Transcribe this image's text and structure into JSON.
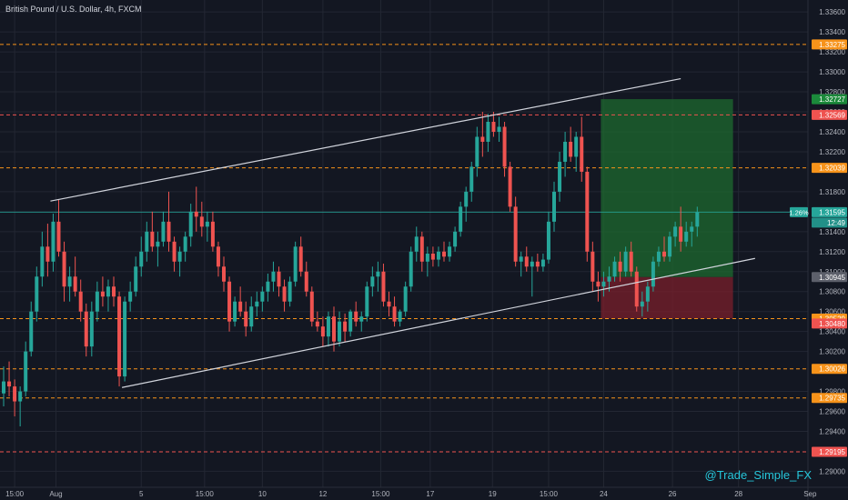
{
  "header": {
    "title": "British Pound / U.S. Dollar, 4h, FXCM"
  },
  "watermark": "@Trade_Simple_FX",
  "colors": {
    "background": "#131722",
    "grid": "#232733",
    "up": "#26a69a",
    "down": "#ef5350",
    "orange_line": "#f7931a",
    "red_line": "#ef5350",
    "trendline": "#d1d4dc",
    "axis_text": "#b2b5be",
    "target_zone": "#1e6a2f",
    "stop_zone": "#7a1f2b"
  },
  "chart_data": {
    "type": "candlestick",
    "interval": "4h",
    "y_axis": {
      "side": "right",
      "range": [
        1.2884,
        1.3372
      ],
      "ticks": [
        "1.33600",
        "1.33400",
        "1.33200",
        "1.33000",
        "1.32800",
        "1.32600",
        "1.32400",
        "1.32200",
        "1.31800",
        "1.31600",
        "1.31400",
        "1.31200",
        "1.31000",
        "1.30800",
        "1.30600",
        "1.30400",
        "1.30200",
        "1.29800",
        "1.29600",
        "1.29400",
        "1.29000"
      ]
    },
    "x_axis": {
      "ticks": [
        {
          "label": "15:00",
          "x": 2.0
        },
        {
          "label": "Aug",
          "x": 9.5
        },
        {
          "label": "5",
          "x": 25.0
        },
        {
          "label": "15:00",
          "x": 36.5
        },
        {
          "label": "10",
          "x": 47.0
        },
        {
          "label": "12",
          "x": 58.0
        },
        {
          "label": "15:00",
          "x": 68.5
        },
        {
          "label": "17",
          "x": 77.5
        },
        {
          "label": "19",
          "x": 88.8
        },
        {
          "label": "15:00",
          "x": 99.0
        },
        {
          "label": "24",
          "x": 109.0
        },
        {
          "label": "26",
          "x": 121.5
        },
        {
          "label": "28",
          "x": 133.5
        },
        {
          "label": "Sep",
          "x": 146.5
        }
      ]
    },
    "horizontal_levels": [
      {
        "value": 1.33275,
        "label": "1.33275",
        "style": "dashed",
        "color": "orange"
      },
      {
        "value": 1.32569,
        "label": "1.32569",
        "style": "dashed",
        "color": "red"
      },
      {
        "value": 1.32039,
        "label": "1.32039",
        "style": "dashed",
        "color": "orange"
      },
      {
        "value": 1.31595,
        "label": "1.31595",
        "style": "solid",
        "color": "teal",
        "current": true
      },
      {
        "value": 1.30529,
        "label": "1.30529",
        "style": "dashed",
        "color": "orange"
      },
      {
        "value": 1.30026,
        "label": "1.30026",
        "style": "dashed",
        "color": "orange"
      },
      {
        "value": 1.29735,
        "label": "1.29735",
        "style": "dashed",
        "color": "orange"
      },
      {
        "value": 1.29195,
        "label": "1.29195",
        "style": "dashed",
        "color": "red"
      }
    ],
    "price_tags": [
      {
        "value": 1.32727,
        "label": "1.32727",
        "color": "green"
      },
      {
        "value": 1.30945,
        "label": "1.30945",
        "color": "grey"
      },
      {
        "value": 1.3048,
        "label": "1.30480",
        "color": "red"
      }
    ],
    "current_price_badge": {
      "change": "1.26%",
      "price": "1.31595",
      "countdown": "12:49"
    },
    "trendlines": [
      {
        "from": {
          "x": 8.5,
          "y": 1.31706
        },
        "to": {
          "x": 123.0,
          "y": 1.32932
        }
      },
      {
        "from": {
          "x": 21.5,
          "y": 1.29839
        },
        "to": {
          "x": 136.5,
          "y": 1.31132
        }
      }
    ],
    "position": {
      "x_start": 108.5,
      "x_end": 132.5,
      "entry": 1.30945,
      "target": 1.32727,
      "stop": 1.30529
    },
    "candles": [
      [
        1.2978,
        1.3005,
        1.2965,
        1.299
      ],
      [
        1.299,
        1.301,
        1.2975,
        1.2985
      ],
      [
        1.2985,
        1.2992,
        1.2955,
        1.297
      ],
      [
        1.297,
        1.2985,
        1.2945,
        1.298
      ],
      [
        1.298,
        1.303,
        1.2975,
        1.302
      ],
      [
        1.302,
        1.307,
        1.3015,
        1.306
      ],
      [
        1.306,
        1.3105,
        1.305,
        1.3095
      ],
      [
        1.3095,
        1.314,
        1.3085,
        1.3125
      ],
      [
        1.3125,
        1.3148,
        1.3095,
        1.311
      ],
      [
        1.311,
        1.3158,
        1.31,
        1.315
      ],
      [
        1.315,
        1.3172,
        1.3115,
        1.312
      ],
      [
        1.312,
        1.313,
        1.307,
        1.3085
      ],
      [
        1.3085,
        1.3105,
        1.307,
        1.3095
      ],
      [
        1.3095,
        1.3115,
        1.3075,
        1.308
      ],
      [
        1.308,
        1.3092,
        1.305,
        1.306
      ],
      [
        1.306,
        1.3068,
        1.3015,
        1.3025
      ],
      [
        1.3025,
        1.307,
        1.3015,
        1.306
      ],
      [
        1.306,
        1.309,
        1.305,
        1.308
      ],
      [
        1.308,
        1.3095,
        1.3065,
        1.3075
      ],
      [
        1.3075,
        1.3092,
        1.306,
        1.3085
      ],
      [
        1.3085,
        1.3095,
        1.3065,
        1.3075
      ],
      [
        1.3075,
        1.308,
        1.2985,
        1.2995
      ],
      [
        1.2995,
        1.3075,
        1.299,
        1.307
      ],
      [
        1.307,
        1.309,
        1.306,
        1.308
      ],
      [
        1.308,
        1.3115,
        1.3075,
        1.3105
      ],
      [
        1.3105,
        1.3135,
        1.3095,
        1.312
      ],
      [
        1.312,
        1.315,
        1.311,
        1.314
      ],
      [
        1.314,
        1.316,
        1.312,
        1.3125
      ],
      [
        1.3125,
        1.314,
        1.3105,
        1.313
      ],
      [
        1.313,
        1.316,
        1.3125,
        1.315
      ],
      [
        1.315,
        1.318,
        1.312,
        1.313
      ],
      [
        1.313,
        1.3135,
        1.31,
        1.311
      ],
      [
        1.311,
        1.3125,
        1.3095,
        1.312
      ],
      [
        1.312,
        1.314,
        1.311,
        1.3135
      ],
      [
        1.3135,
        1.3168,
        1.3125,
        1.316
      ],
      [
        1.316,
        1.3185,
        1.314,
        1.3155
      ],
      [
        1.3155,
        1.317,
        1.3135,
        1.3145
      ],
      [
        1.3145,
        1.316,
        1.313,
        1.315
      ],
      [
        1.315,
        1.316,
        1.312,
        1.3125
      ],
      [
        1.3125,
        1.313,
        1.3095,
        1.3105
      ],
      [
        1.3105,
        1.3115,
        1.308,
        1.309
      ],
      [
        1.309,
        1.3095,
        1.304,
        1.305
      ],
      [
        1.305,
        1.3075,
        1.3045,
        1.307
      ],
      [
        1.307,
        1.3085,
        1.3055,
        1.306
      ],
      [
        1.306,
        1.307,
        1.3035,
        1.3045
      ],
      [
        1.3045,
        1.3075,
        1.304,
        1.3065
      ],
      [
        1.3065,
        1.308,
        1.3055,
        1.307
      ],
      [
        1.307,
        1.3085,
        1.306,
        1.308
      ],
      [
        1.308,
        1.3098,
        1.307,
        1.309
      ],
      [
        1.309,
        1.311,
        1.308,
        1.31
      ],
      [
        1.31,
        1.3105,
        1.3075,
        1.3085
      ],
      [
        1.3085,
        1.3092,
        1.306,
        1.307
      ],
      [
        1.307,
        1.3095,
        1.3065,
        1.309
      ],
      [
        1.309,
        1.313,
        1.3085,
        1.3125
      ],
      [
        1.3125,
        1.3135,
        1.3095,
        1.31
      ],
      [
        1.31,
        1.311,
        1.3075,
        1.308
      ],
      [
        1.308,
        1.3085,
        1.3045,
        1.305
      ],
      [
        1.305,
        1.306,
        1.304,
        1.3045
      ],
      [
        1.3045,
        1.3055,
        1.3025,
        1.3035
      ],
      [
        1.3035,
        1.306,
        1.3025,
        1.3055
      ],
      [
        1.3055,
        1.3065,
        1.302,
        1.303
      ],
      [
        1.303,
        1.306,
        1.3025,
        1.305
      ],
      [
        1.305,
        1.3058,
        1.303,
        1.304
      ],
      [
        1.304,
        1.3062,
        1.3035,
        1.306
      ],
      [
        1.306,
        1.307,
        1.3045,
        1.305
      ],
      [
        1.305,
        1.306,
        1.304,
        1.3055
      ],
      [
        1.3055,
        1.309,
        1.305,
        1.3085
      ],
      [
        1.3085,
        1.3105,
        1.3075,
        1.3095
      ],
      [
        1.3095,
        1.311,
        1.308,
        1.31
      ],
      [
        1.31,
        1.3108,
        1.3065,
        1.307
      ],
      [
        1.307,
        1.308,
        1.3055,
        1.3065
      ],
      [
        1.3065,
        1.3075,
        1.3045,
        1.305
      ],
      [
        1.305,
        1.3062,
        1.3045,
        1.306
      ],
      [
        1.306,
        1.309,
        1.3055,
        1.3085
      ],
      [
        1.3085,
        1.3125,
        1.308,
        1.312
      ],
      [
        1.312,
        1.3145,
        1.311,
        1.3135
      ],
      [
        1.3135,
        1.314,
        1.31,
        1.311
      ],
      [
        1.311,
        1.3125,
        1.3095,
        1.3118
      ],
      [
        1.3118,
        1.3125,
        1.3105,
        1.3112
      ],
      [
        1.3112,
        1.3125,
        1.3105,
        1.312
      ],
      [
        1.312,
        1.313,
        1.311,
        1.3115
      ],
      [
        1.3115,
        1.313,
        1.311,
        1.3125
      ],
      [
        1.3125,
        1.3145,
        1.312,
        1.314
      ],
      [
        1.314,
        1.317,
        1.3135,
        1.3165
      ],
      [
        1.3165,
        1.3185,
        1.315,
        1.318
      ],
      [
        1.318,
        1.321,
        1.317,
        1.3205
      ],
      [
        1.3205,
        1.3245,
        1.3195,
        1.3235
      ],
      [
        1.3235,
        1.326,
        1.3215,
        1.323
      ],
      [
        1.323,
        1.3258,
        1.322,
        1.325
      ],
      [
        1.325,
        1.326,
        1.3235,
        1.324
      ],
      [
        1.324,
        1.3255,
        1.323,
        1.3245
      ],
      [
        1.3245,
        1.325,
        1.3195,
        1.3205
      ],
      [
        1.3205,
        1.321,
        1.316,
        1.3165
      ],
      [
        1.3165,
        1.3175,
        1.3105,
        1.311
      ],
      [
        1.311,
        1.312,
        1.3095,
        1.3115
      ],
      [
        1.3115,
        1.3125,
        1.31,
        1.3105
      ],
      [
        1.3105,
        1.3115,
        1.3075,
        1.311
      ],
      [
        1.311,
        1.3118,
        1.31,
        1.3105
      ],
      [
        1.3105,
        1.3118,
        1.31,
        1.3112
      ],
      [
        1.3112,
        1.316,
        1.3108,
        1.315
      ],
      [
        1.315,
        1.319,
        1.314,
        1.318
      ],
      [
        1.318,
        1.322,
        1.317,
        1.321
      ],
      [
        1.321,
        1.324,
        1.3195,
        1.323
      ],
      [
        1.323,
        1.3245,
        1.321,
        1.3215
      ],
      [
        1.3215,
        1.324,
        1.32,
        1.3235
      ],
      [
        1.3235,
        1.3255,
        1.319,
        1.32
      ],
      [
        1.32,
        1.3205,
        1.311,
        1.312
      ],
      [
        1.312,
        1.313,
        1.308,
        1.309
      ],
      [
        1.309,
        1.31,
        1.307,
        1.3085
      ],
      [
        1.3085,
        1.31,
        1.3075,
        1.309
      ],
      [
        1.309,
        1.3105,
        1.308,
        1.3095
      ],
      [
        1.3095,
        1.3115,
        1.309,
        1.311
      ],
      [
        1.311,
        1.312,
        1.309,
        1.31
      ],
      [
        1.31,
        1.3125,
        1.3095,
        1.312
      ],
      [
        1.312,
        1.313,
        1.3095,
        1.31
      ],
      [
        1.31,
        1.3105,
        1.306,
        1.3065
      ],
      [
        1.3065,
        1.308,
        1.3055,
        1.307
      ],
      [
        1.307,
        1.309,
        1.306,
        1.3085
      ],
      [
        1.3085,
        1.3115,
        1.308,
        1.311
      ],
      [
        1.311,
        1.3125,
        1.3105,
        1.312
      ],
      [
        1.312,
        1.3135,
        1.311,
        1.3115
      ],
      [
        1.3115,
        1.314,
        1.311,
        1.3135
      ],
      [
        1.3135,
        1.315,
        1.3125,
        1.3145
      ],
      [
        1.3145,
        1.3165,
        1.312,
        1.313
      ],
      [
        1.313,
        1.315,
        1.3125,
        1.314
      ],
      [
        1.314,
        1.315,
        1.3125,
        1.3145
      ],
      [
        1.3145,
        1.3165,
        1.3135,
        1.31595
      ]
    ]
  }
}
